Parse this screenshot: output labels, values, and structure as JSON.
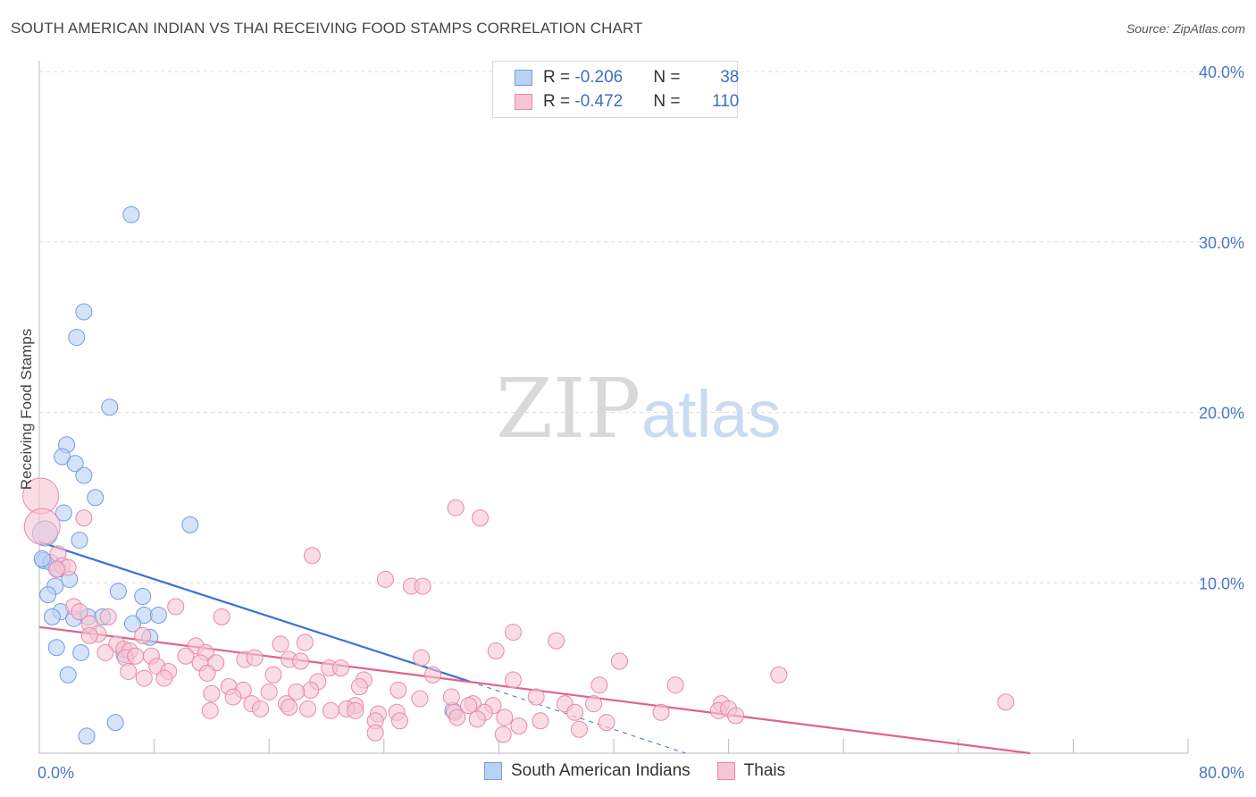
{
  "header": {
    "title": "SOUTH AMERICAN INDIAN VS THAI RECEIVING FOOD STAMPS CORRELATION CHART",
    "source": "Source: ZipAtlas.com"
  },
  "watermark": {
    "zip": "ZIP",
    "atlas": "atlas"
  },
  "legend": {
    "rows": [
      {
        "r_label": "R = ",
        "r_value": "-0.206",
        "n_label": "N = ",
        "n_value": "38",
        "color": "#6f9ee0",
        "fill": "#b9d1f3"
      },
      {
        "r_label": "R = ",
        "r_value": "-0.472",
        "n_label": "N = ",
        "n_value": "110",
        "color": "#e889a8",
        "fill": "#f7c4d4"
      }
    ]
  },
  "bottom_legend": {
    "items": [
      {
        "label": "South American Indians",
        "color": "#6f9ee0",
        "fill": "#b9d1f3"
      },
      {
        "label": "Thais",
        "color": "#e889a8",
        "fill": "#f7c4d4"
      }
    ]
  },
  "chart_data": {
    "type": "scatter",
    "title": "SOUTH AMERICAN INDIAN VS THAI RECEIVING FOOD STAMPS CORRELATION CHART",
    "xlabel": "",
    "ylabel": "Receiving Food Stamps",
    "xlim": [
      0,
      80
    ],
    "ylim": [
      0,
      40
    ],
    "x_tick_labels": [
      {
        "value": 0,
        "label": "0.0%"
      },
      {
        "value": 80,
        "label": "80.0%"
      }
    ],
    "y_tick_labels": [
      {
        "value": 10,
        "label": "10.0%"
      },
      {
        "value": 20,
        "label": "20.0%"
      },
      {
        "value": 30,
        "label": "30.0%"
      },
      {
        "value": 40,
        "label": "40.0%"
      }
    ],
    "grid": true,
    "legend_position": "top-center",
    "series": [
      {
        "name": "South American Indians",
        "color": "#6f9ee0",
        "fill": "#b9d1f3",
        "trend": {
          "x0": 0,
          "y0": 12.4,
          "x1": 30,
          "y1": 4.2,
          "dash_to_x": 45,
          "dash_to_y": 0.0
        },
        "points": [
          [
            6.4,
            31.6
          ],
          [
            3.1,
            25.9
          ],
          [
            2.6,
            24.4
          ],
          [
            4.9,
            20.3
          ],
          [
            1.9,
            18.1
          ],
          [
            1.6,
            17.4
          ],
          [
            2.5,
            17.0
          ],
          [
            3.1,
            16.3
          ],
          [
            3.9,
            15.0
          ],
          [
            1.7,
            14.1
          ],
          [
            10.5,
            13.4
          ],
          [
            0.4,
            12.9
          ],
          [
            2.8,
            12.5
          ],
          [
            0.3,
            11.3
          ],
          [
            0.8,
            11.2
          ],
          [
            1.3,
            10.8
          ],
          [
            2.1,
            10.2
          ],
          [
            1.1,
            9.8
          ],
          [
            0.6,
            9.3
          ],
          [
            5.5,
            9.5
          ],
          [
            7.2,
            9.2
          ],
          [
            1.5,
            8.3
          ],
          [
            7.3,
            8.1
          ],
          [
            8.3,
            8.1
          ],
          [
            0.9,
            8.0
          ],
          [
            2.4,
            7.9
          ],
          [
            3.4,
            8.0
          ],
          [
            4.4,
            8.0
          ],
          [
            6.5,
            7.6
          ],
          [
            7.7,
            6.8
          ],
          [
            1.2,
            6.2
          ],
          [
            5.9,
            5.8
          ],
          [
            2.9,
            5.9
          ],
          [
            2.0,
            4.6
          ],
          [
            28.8,
            2.5
          ],
          [
            5.3,
            1.8
          ],
          [
            3.3,
            1.0
          ],
          [
            0.2,
            11.4
          ]
        ],
        "sizes": [
          1,
          1,
          1,
          1,
          1,
          1,
          1,
          1,
          1,
          1,
          1,
          2,
          1,
          1,
          1,
          1,
          1,
          1,
          1,
          1,
          1,
          1,
          1,
          1,
          1,
          1,
          1,
          1,
          1,
          1,
          1,
          1,
          1,
          1,
          1,
          1,
          1,
          1
        ]
      },
      {
        "name": "Thais",
        "color": "#e889a8",
        "fill": "#f7c4d4",
        "trend": {
          "x0": 0,
          "y0": 7.4,
          "x1": 69,
          "y1": 0.0
        },
        "points": [
          [
            0.1,
            15.1
          ],
          [
            3.1,
            13.8
          ],
          [
            0.2,
            13.3
          ],
          [
            1.3,
            11.7
          ],
          [
            1.6,
            11.0
          ],
          [
            2.0,
            10.9
          ],
          [
            1.2,
            10.8
          ],
          [
            19.0,
            11.6
          ],
          [
            24.1,
            10.2
          ],
          [
            25.9,
            9.8
          ],
          [
            26.7,
            9.8
          ],
          [
            29.0,
            14.4
          ],
          [
            30.7,
            13.8
          ],
          [
            2.4,
            8.6
          ],
          [
            9.5,
            8.6
          ],
          [
            2.8,
            8.3
          ],
          [
            4.8,
            8.0
          ],
          [
            12.7,
            8.0
          ],
          [
            3.5,
            7.6
          ],
          [
            4.1,
            7.0
          ],
          [
            3.5,
            6.9
          ],
          [
            7.2,
            6.9
          ],
          [
            33.0,
            7.1
          ],
          [
            36.0,
            6.6
          ],
          [
            18.5,
            6.5
          ],
          [
            16.8,
            6.4
          ],
          [
            5.4,
            6.4
          ],
          [
            10.9,
            6.3
          ],
          [
            5.9,
            6.1
          ],
          [
            6.3,
            6.0
          ],
          [
            11.6,
            5.9
          ],
          [
            4.6,
            5.9
          ],
          [
            7.8,
            5.7
          ],
          [
            31.8,
            6.0
          ],
          [
            10.2,
            5.7
          ],
          [
            6.0,
            5.6
          ],
          [
            12.3,
            5.3
          ],
          [
            14.3,
            5.5
          ],
          [
            15.0,
            5.6
          ],
          [
            17.4,
            5.5
          ],
          [
            18.2,
            5.4
          ],
          [
            26.6,
            5.6
          ],
          [
            40.4,
            5.4
          ],
          [
            11.2,
            5.3
          ],
          [
            8.2,
            5.1
          ],
          [
            20.2,
            5.0
          ],
          [
            21.0,
            5.0
          ],
          [
            6.2,
            4.8
          ],
          [
            9.0,
            4.8
          ],
          [
            11.7,
            4.7
          ],
          [
            16.3,
            4.6
          ],
          [
            27.4,
            4.6
          ],
          [
            8.7,
            4.4
          ],
          [
            7.3,
            4.4
          ],
          [
            51.5,
            4.6
          ],
          [
            19.4,
            4.2
          ],
          [
            22.6,
            4.3
          ],
          [
            33.0,
            4.3
          ],
          [
            39.0,
            4.0
          ],
          [
            44.3,
            4.0
          ],
          [
            13.2,
            3.9
          ],
          [
            14.2,
            3.7
          ],
          [
            22.3,
            3.9
          ],
          [
            25.0,
            3.7
          ],
          [
            18.9,
            3.7
          ],
          [
            17.9,
            3.6
          ],
          [
            16.0,
            3.6
          ],
          [
            12.0,
            3.5
          ],
          [
            13.5,
            3.3
          ],
          [
            34.6,
            3.3
          ],
          [
            28.7,
            3.3
          ],
          [
            26.5,
            3.2
          ],
          [
            30.2,
            2.9
          ],
          [
            14.8,
            2.9
          ],
          [
            17.2,
            2.9
          ],
          [
            22.0,
            2.8
          ],
          [
            29.9,
            2.8
          ],
          [
            31.6,
            2.8
          ],
          [
            36.6,
            2.9
          ],
          [
            38.6,
            2.9
          ],
          [
            47.5,
            2.9
          ],
          [
            67.3,
            3.0
          ],
          [
            15.4,
            2.6
          ],
          [
            11.9,
            2.5
          ],
          [
            17.4,
            2.7
          ],
          [
            18.7,
            2.6
          ],
          [
            20.3,
            2.5
          ],
          [
            21.4,
            2.6
          ],
          [
            22.0,
            2.5
          ],
          [
            23.6,
            2.3
          ],
          [
            24.9,
            2.4
          ],
          [
            28.9,
            2.4
          ],
          [
            31.0,
            2.4
          ],
          [
            37.3,
            2.4
          ],
          [
            43.3,
            2.4
          ],
          [
            47.3,
            2.5
          ],
          [
            48.0,
            2.6
          ],
          [
            48.5,
            2.2
          ],
          [
            23.4,
            1.9
          ],
          [
            25.1,
            1.9
          ],
          [
            29.1,
            2.1
          ],
          [
            30.5,
            2.0
          ],
          [
            32.4,
            2.1
          ],
          [
            34.9,
            1.9
          ],
          [
            39.5,
            1.8
          ],
          [
            33.4,
            1.6
          ],
          [
            37.6,
            1.4
          ],
          [
            23.4,
            1.2
          ],
          [
            32.3,
            1.1
          ],
          [
            6.7,
            5.7
          ]
        ],
        "sizes": [
          3,
          1,
          3,
          1,
          1,
          1,
          1,
          1,
          1,
          1,
          1,
          1,
          1,
          1,
          1,
          1,
          1,
          1,
          1,
          1,
          1,
          1,
          1,
          1,
          1,
          1,
          1,
          1,
          1,
          1,
          1,
          1,
          1,
          1,
          1,
          1,
          1,
          1,
          1,
          1,
          1,
          1,
          1,
          1,
          1,
          1,
          1,
          1,
          1,
          1,
          1,
          1,
          1,
          1,
          1,
          1,
          1,
          1,
          1,
          1,
          1,
          1,
          1,
          1,
          1,
          1,
          1,
          1,
          1,
          1,
          1,
          1,
          1,
          1,
          1,
          1,
          1,
          1,
          1,
          1,
          1,
          1,
          1,
          1,
          1,
          1,
          1,
          1,
          1,
          1,
          1,
          1,
          1,
          1,
          1,
          1,
          1,
          1,
          1,
          1,
          1,
          1,
          1,
          1,
          1,
          1,
          1,
          1,
          1,
          1
        ]
      }
    ]
  }
}
